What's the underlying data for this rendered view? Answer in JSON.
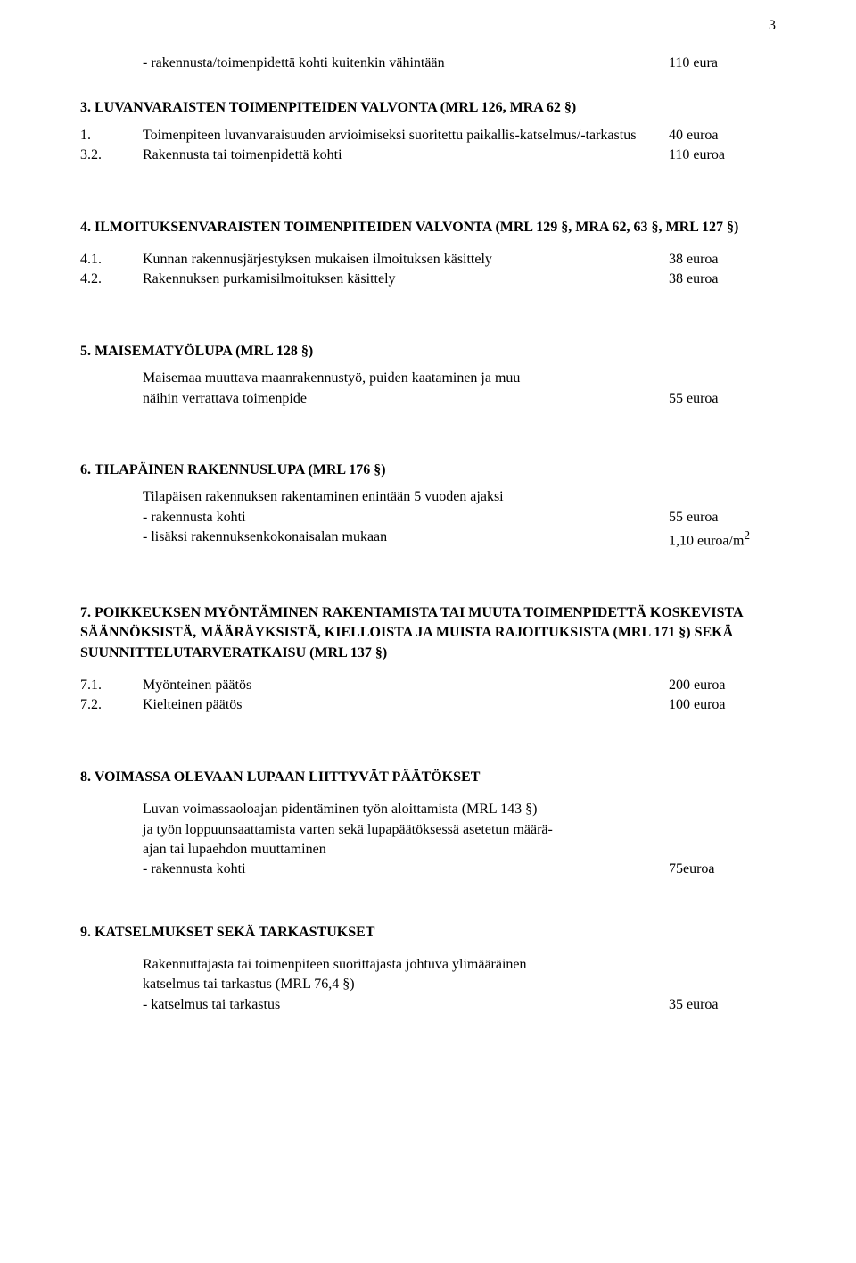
{
  "page_number": "3",
  "line_minfee": {
    "text": "- rakennusta/toimenpidettä kohti kuitenkin vähintään",
    "value": "110 eura"
  },
  "section3": {
    "title": "3. LUVANVARAISTEN TOIMENPITEIDEN VALVONTA (MRL 126, MRA 62 §)",
    "items": [
      {
        "num": "1.",
        "text": "Toimenpiteen luvanvaraisuuden arvioimiseksi suoritettu paikallis-katselmus/-tarkastus",
        "value": "40 euroa"
      },
      {
        "num": "3.2.",
        "text": "Rakennusta tai toimenpidettä kohti",
        "value": "110 euroa"
      }
    ]
  },
  "section4": {
    "title": "4. ILMOITUKSENVARAISTEN TOIMENPITEIDEN VALVONTA (MRL 129 §, MRA 62, 63 §, MRL 127 §)",
    "items": [
      {
        "num": "4.1.",
        "text": "Kunnan rakennusjärjestyksen mukaisen ilmoituksen käsittely",
        "value": "38 euroa"
      },
      {
        "num": "4.2.",
        "text": "Rakennuksen purkamisilmoituksen käsittely",
        "value": "38 euroa"
      }
    ]
  },
  "section5": {
    "title": "5. MAISEMATYÖLUPA (MRL 128 §)",
    "body": {
      "line1": "Maisemaa muuttava maanrakennustyö, puiden kaataminen ja muu",
      "line2": "näihin verrattava toimenpide",
      "value": "55 euroa"
    }
  },
  "section6": {
    "title": "6. TILAPÄINEN RAKENNUSLUPA (MRL 176 §)",
    "body": {
      "line1": "Tilapäisen rakennuksen rakentaminen enintään 5 vuoden ajaksi",
      "item1": {
        "text": "- rakennusta kohti",
        "value": "55 euroa"
      },
      "item2": {
        "text": "- lisäksi rakennuksenkokonaisalan mukaan",
        "value": "1,10 euroa/m",
        "sup": "2"
      }
    }
  },
  "section7": {
    "title": "7. POIKKEUKSEN MYÖNTÄMINEN RAKENTAMISTA TAI MUUTA TOIMENPIDETTÄ KOSKEVISTA SÄÄNNÖKSISTÄ, MÄÄRÄYKSISTÄ, KIELLOISTA JA MUISTA RAJOITUKSISTA (MRL 171 §) SEKÄ SUUNNITTELUTARVERATKAISU (MRL 137 §)",
    "items": [
      {
        "num": "7.1.",
        "text": "Myönteinen päätös",
        "value": "200 euroa"
      },
      {
        "num": "7.2.",
        "text": "Kielteinen päätös",
        "value": "100 euroa"
      }
    ]
  },
  "section8": {
    "title": "8. VOIMASSA OLEVAAN LUPAAN LIITTYVÄT PÄÄTÖKSET",
    "body": {
      "line1": "Luvan voimassaoloajan pidentäminen työn aloittamista (MRL 143 §)",
      "line2": "ja työn loppuunsaattamista varten sekä lupapäätöksessä asetetun määrä-",
      "line3": "ajan tai lupaehdon muuttaminen",
      "item": {
        "text": "- rakennusta kohti",
        "value": "75euroa"
      }
    }
  },
  "section9": {
    "title": "9. KATSELMUKSET SEKÄ TARKASTUKSET",
    "body": {
      "line1": "Rakennuttajasta tai toimenpiteen suorittajasta johtuva ylimääräinen",
      "line2": "katselmus tai tarkastus (MRL 76,4 §)",
      "item": {
        "text": "- katselmus tai tarkastus",
        "value": "35 euroa"
      }
    }
  }
}
